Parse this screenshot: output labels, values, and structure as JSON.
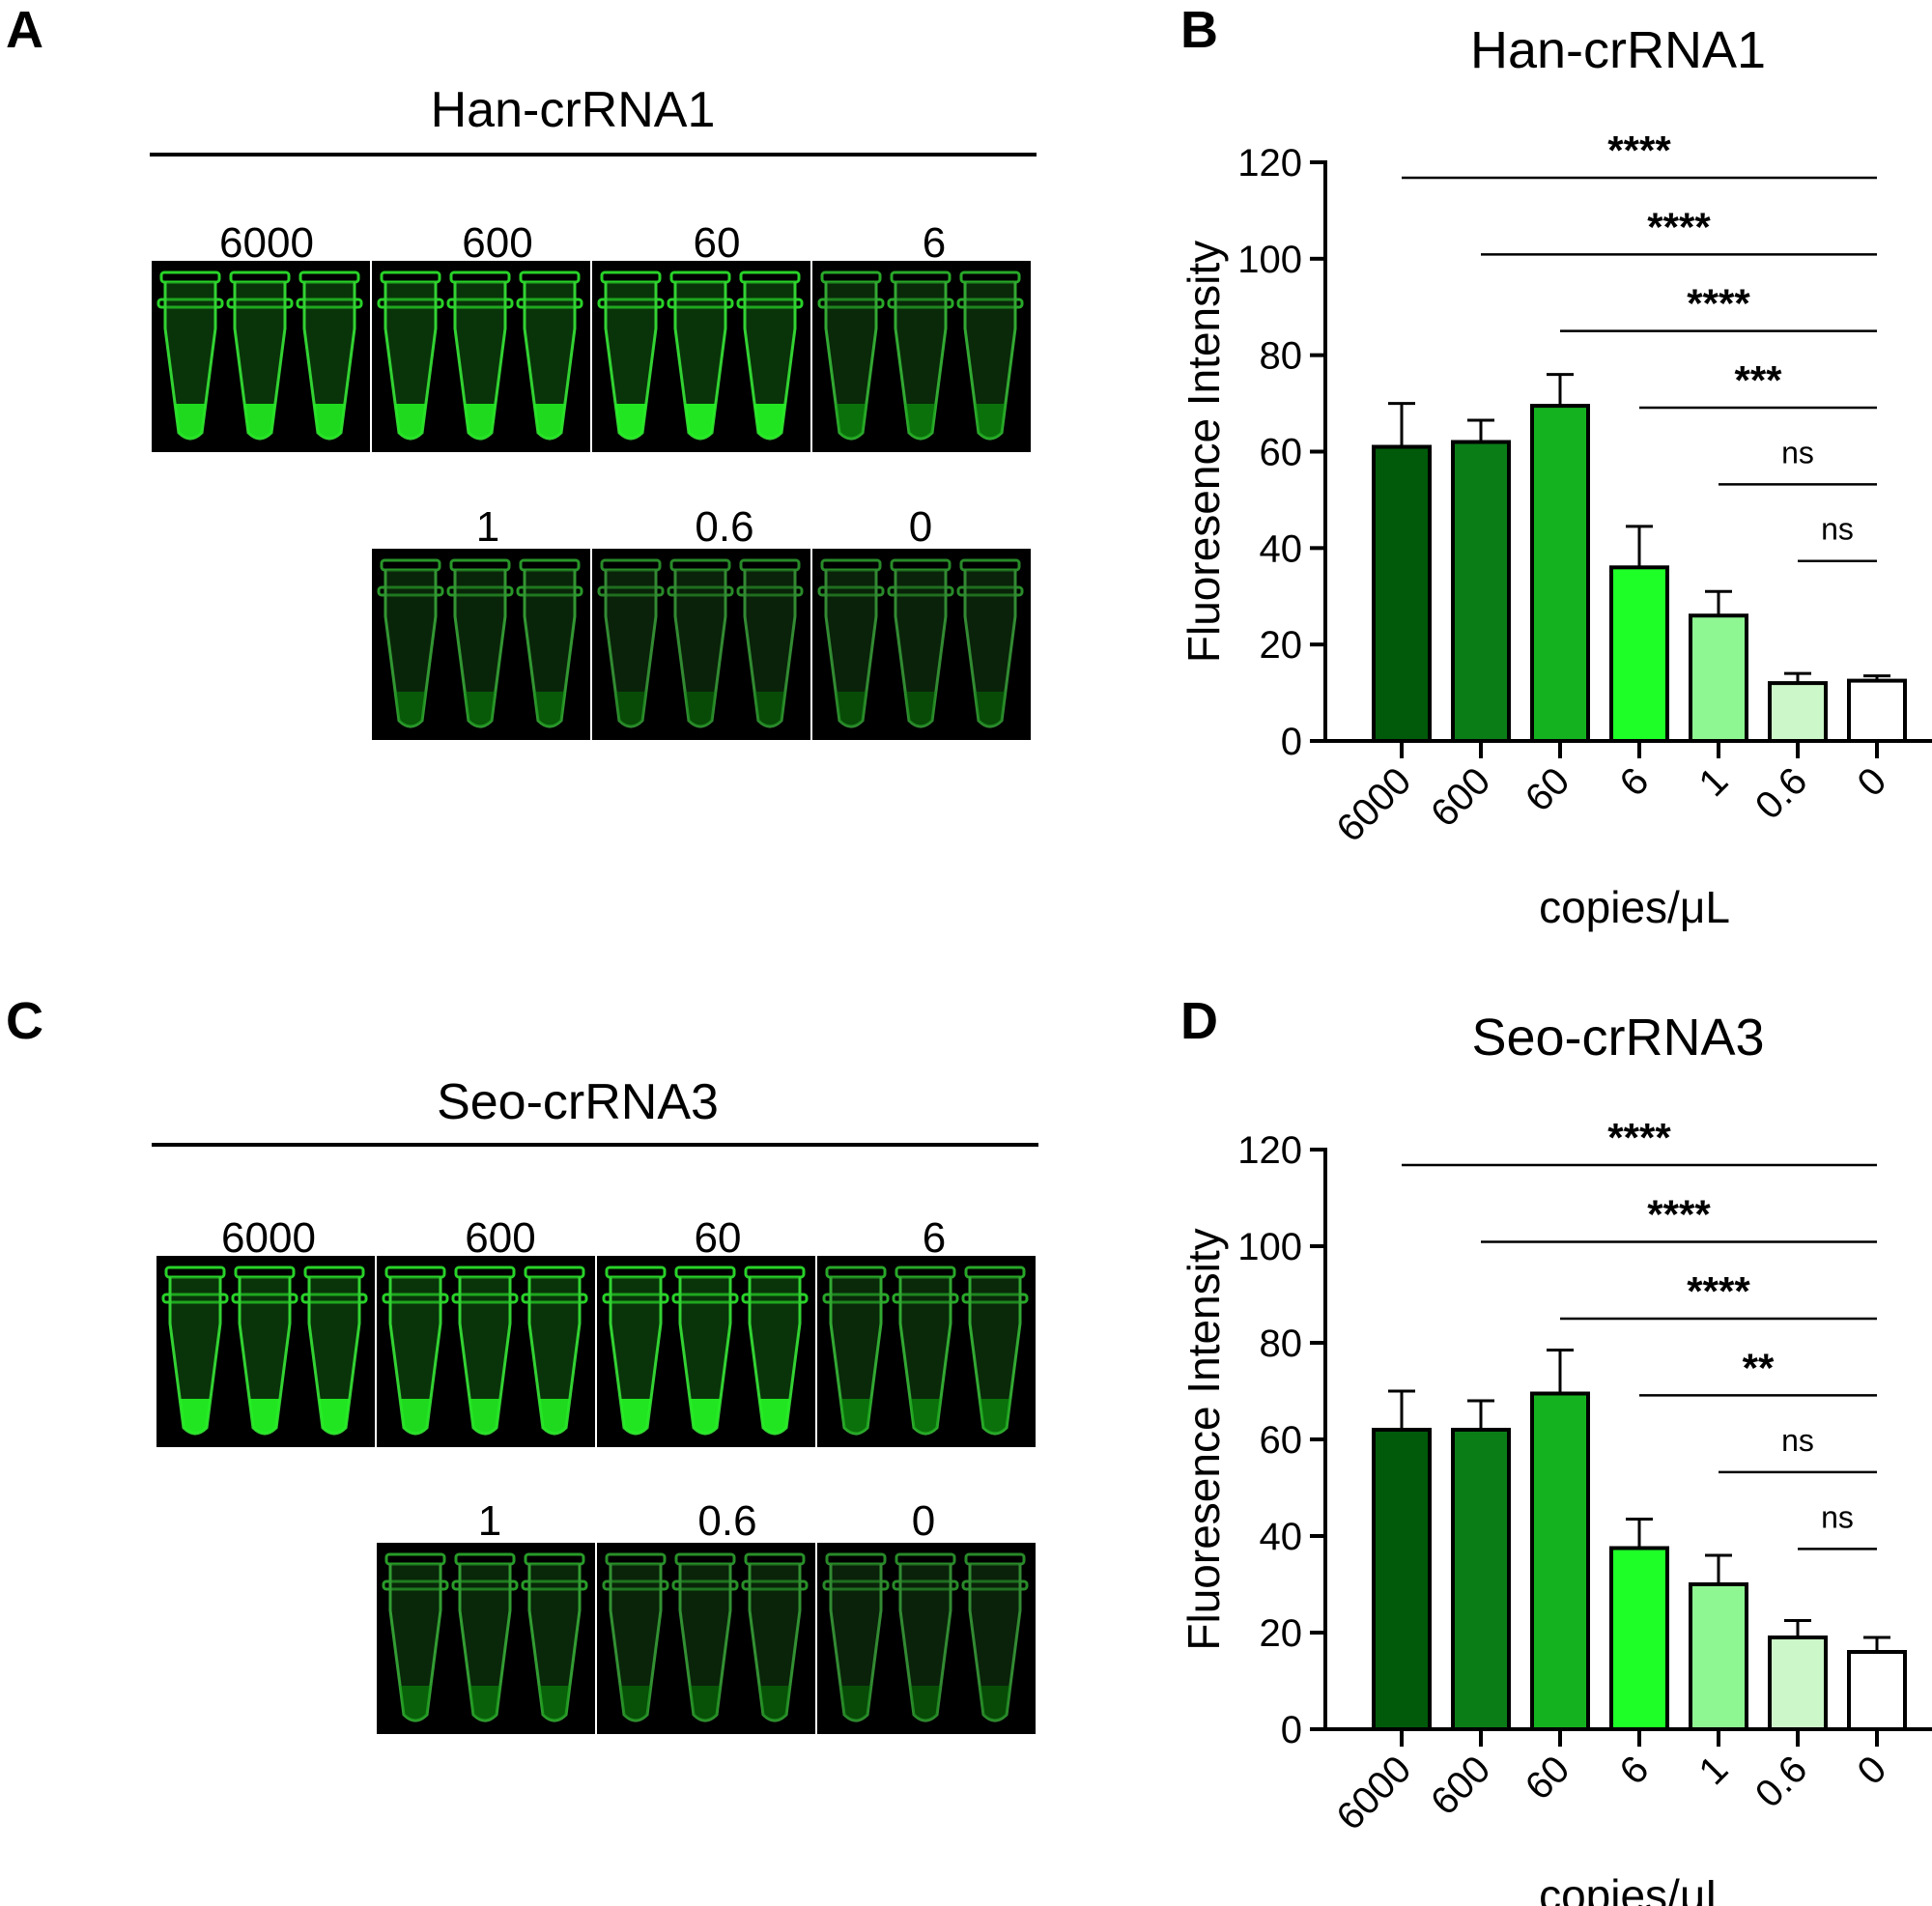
{
  "panels": {
    "A": "A",
    "B": "B",
    "C": "C",
    "D": "D"
  },
  "photos": [
    {
      "title": "Han-crRNA1",
      "row1_labels": [
        "6000",
        "600",
        "60",
        "6"
      ],
      "row2_labels": [
        "1",
        "0.6",
        "0"
      ],
      "glow_levels": [
        0.85,
        0.85,
        0.9,
        0.35,
        0.2,
        0.1,
        0.1
      ]
    },
    {
      "title": "Seo-crRNA3",
      "row1_labels": [
        "6000",
        "600",
        "60",
        "6"
      ],
      "row2_labels": [
        "1",
        "0.6",
        "0"
      ],
      "glow_levels": [
        0.9,
        0.85,
        0.9,
        0.35,
        0.25,
        0.15,
        0.1
      ]
    }
  ],
  "chart_data": [
    {
      "type": "bar",
      "title": "Han-crRNA1",
      "xlabel": "copies/μL",
      "ylabel": "Fluoresence Intensity",
      "categories": [
        "6000",
        "600",
        "60",
        "6",
        "1",
        "0.6",
        "0"
      ],
      "values": [
        61,
        62,
        69.5,
        36,
        26,
        12,
        12.5
      ],
      "errors": [
        9,
        4.5,
        6.5,
        8.5,
        5,
        2,
        1
      ],
      "colors": [
        "#005a0a",
        "#0b7d17",
        "#15b21f",
        "#1eff28",
        "#8ef791",
        "#ccf7c8",
        "#ffffff"
      ],
      "yticks": [
        "0",
        "20",
        "40",
        "60",
        "80",
        "100",
        "120"
      ],
      "ylim": [
        0,
        120
      ],
      "significance": [
        {
          "label": "****",
          "from": "6000",
          "to": "0"
        },
        {
          "label": "****",
          "from": "600",
          "to": "0"
        },
        {
          "label": "****",
          "from": "60",
          "to": "0"
        },
        {
          "label": "***",
          "from": "6",
          "to": "0"
        },
        {
          "label": "ns",
          "from": "1",
          "to": "0"
        },
        {
          "label": "ns",
          "from": "0.6",
          "to": "0"
        }
      ]
    },
    {
      "type": "bar",
      "title": "Seo-crRNA3",
      "xlabel": "copies/μL",
      "ylabel": "Fluoresence Intensity",
      "categories": [
        "6000",
        "600",
        "60",
        "6",
        "1",
        "0.6",
        "0"
      ],
      "values": [
        62,
        62,
        69.5,
        37.5,
        30,
        19,
        16
      ],
      "errors": [
        8,
        6,
        9,
        6,
        6,
        3.5,
        3
      ],
      "colors": [
        "#005a0a",
        "#0b7d17",
        "#15b21f",
        "#1eff28",
        "#8ef791",
        "#ccf7c8",
        "#ffffff"
      ],
      "yticks": [
        "0",
        "20",
        "40",
        "60",
        "80",
        "100",
        "120"
      ],
      "ylim": [
        0,
        120
      ],
      "significance": [
        {
          "label": "****",
          "from": "6000",
          "to": "0"
        },
        {
          "label": "****",
          "from": "600",
          "to": "0"
        },
        {
          "label": "****",
          "from": "60",
          "to": "0"
        },
        {
          "label": "**",
          "from": "6",
          "to": "0"
        },
        {
          "label": "ns",
          "from": "1",
          "to": "0"
        },
        {
          "label": "ns",
          "from": "0.6",
          "to": "0"
        }
      ]
    }
  ]
}
